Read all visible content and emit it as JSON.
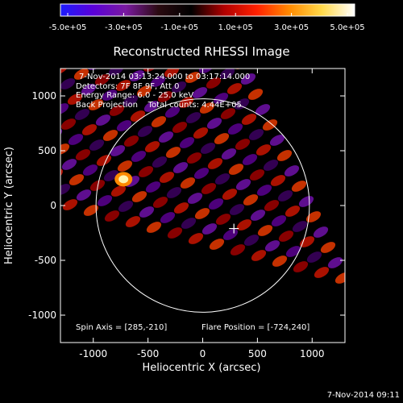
{
  "colorbar": {
    "ticks": [
      "-5.0e+05",
      "-3.0e+05",
      "-1.0e+05",
      "1.0e+05",
      "3.0e+05",
      "5.0e+05"
    ],
    "stops": [
      "#1c1cff",
      "#5a00d8",
      "#7a1aa0",
      "#2a0a10",
      "#000000",
      "#b00000",
      "#ff2000",
      "#ff8a00",
      "#ffd94a",
      "#ffffff"
    ]
  },
  "chart_data": {
    "type": "heatmap",
    "title": "Reconstructed RHESSI Image",
    "xlabel": "Heliocentric X (arcsec)",
    "ylabel": "Heliocentric Y (arcsec)",
    "xlim": [
      -1300,
      1300
    ],
    "ylim": [
      -1250,
      1250
    ],
    "x_ticks": [
      -1000,
      -500,
      0,
      500,
      1000
    ],
    "y_ticks": [
      -1000,
      -500,
      0,
      500,
      1000
    ],
    "x_tick_labels": [
      "-1000",
      "-500",
      "0",
      "500",
      "1000"
    ],
    "y_tick_labels": [
      "-1000",
      "-500",
      "0",
      "500",
      "1000"
    ],
    "colorbar_range": [
      -500000,
      500000
    ],
    "solar_disk": {
      "center": [
        0,
        0
      ],
      "radius_arcsec": 975
    },
    "flare_position": [
      -724,
      240
    ],
    "spin_axis": [
      285,
      -210
    ],
    "info_lines": [
      "7-Nov-2014 03:13:24.000 to 03:17:14.000",
      "Detectors: 7F 8F 9F, Att 0",
      "Energy Range: 6.0 - 25.0 keV",
      "Back Projection    Total counts: 4.44E+05"
    ],
    "spin_axis_label": "Spin Axis = [285,-210]",
    "flare_position_label": "Flare Position = [-724,240]"
  },
  "footer": {
    "timestamp": "7-Nov-2014 09:11"
  }
}
